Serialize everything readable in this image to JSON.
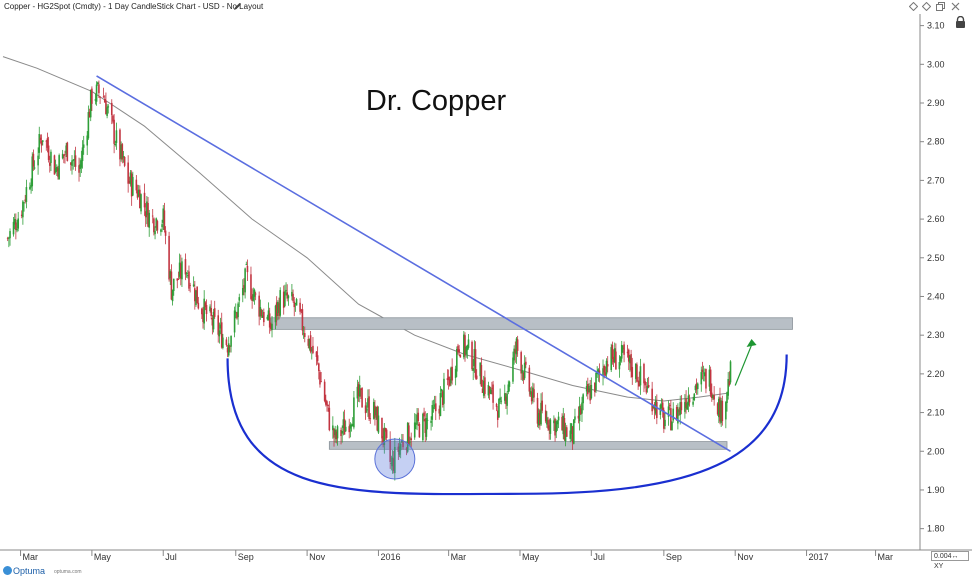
{
  "header": {
    "title": "Copper - HG2Spot (Cmdty) - 1 Day CandleStick Chart - USD - No Layout",
    "pencil_icon": "pencil-icon",
    "window_icons": [
      "diamond-icon",
      "diamond-icon",
      "restore-icon",
      "close-icon"
    ]
  },
  "annotation_title": "Dr. Copper",
  "zoom": "0.004↔ XY",
  "brand": {
    "name": "Optuma",
    "sub": "optuma.com"
  },
  "colors": {
    "up_candle": "#2e9e38",
    "down_candle": "#c23440",
    "trendline": "#5b6ee0",
    "bowl": "#1a2fd0",
    "zone": "#b8bfc6",
    "moving_average": "#8a8a8a",
    "arrow": "#1e9632"
  },
  "chart_data": {
    "type": "candlestick",
    "title": "Dr. Copper",
    "y_ticks": [
      "3.10",
      "3.00",
      "2.90",
      "2.80",
      "2.70",
      "2.60",
      "2.50",
      "2.40",
      "2.30",
      "2.20",
      "2.10",
      "2.00",
      "1.90",
      "1.80"
    ],
    "ylim": [
      1.75,
      3.13
    ],
    "x_ticks": [
      "Mar",
      "May",
      "Jul",
      "Sep",
      "Nov",
      "2016",
      "Mar",
      "May",
      "Jul",
      "Sep",
      "Nov",
      "2017",
      "Mar"
    ],
    "xlim": [
      "2015-02-14",
      "2017-04-08"
    ],
    "close_path": [
      [
        "2015-02-18",
        2.55
      ],
      [
        "2015-03-01",
        2.62
      ],
      [
        "2015-03-10",
        2.72
      ],
      [
        "2015-03-20",
        2.82
      ],
      [
        "2015-03-31",
        2.73
      ],
      [
        "2015-04-10",
        2.78
      ],
      [
        "2015-04-20",
        2.72
      ],
      [
        "2015-05-01",
        2.92
      ],
      [
        "2015-05-10",
        2.93
      ],
      [
        "2015-05-20",
        2.82
      ],
      [
        "2015-06-01",
        2.7
      ],
      [
        "2015-06-10",
        2.67
      ],
      [
        "2015-06-20",
        2.6
      ],
      [
        "2015-07-01",
        2.6
      ],
      [
        "2015-07-08",
        2.42
      ],
      [
        "2015-07-20",
        2.48
      ],
      [
        "2015-08-01",
        2.38
      ],
      [
        "2015-08-15",
        2.32
      ],
      [
        "2015-08-25",
        2.28
      ],
      [
        "2015-09-01",
        2.35
      ],
      [
        "2015-09-10",
        2.45
      ],
      [
        "2015-09-20",
        2.38
      ],
      [
        "2015-10-01",
        2.32
      ],
      [
        "2015-10-10",
        2.4
      ],
      [
        "2015-10-20",
        2.38
      ],
      [
        "2015-11-01",
        2.3
      ],
      [
        "2015-11-10",
        2.22
      ],
      [
        "2015-11-20",
        2.08
      ],
      [
        "2015-11-25",
        2.03
      ],
      [
        "2015-12-05",
        2.07
      ],
      [
        "2015-12-15",
        2.14
      ],
      [
        "2015-12-28",
        2.1
      ],
      [
        "2016-01-05",
        2.04
      ],
      [
        "2016-01-12",
        1.96
      ],
      [
        "2016-01-20",
        2.02
      ],
      [
        "2016-02-01",
        2.06
      ],
      [
        "2016-02-15",
        2.08
      ],
      [
        "2016-03-01",
        2.18
      ],
      [
        "2016-03-10",
        2.28
      ],
      [
        "2016-03-20",
        2.25
      ],
      [
        "2016-04-01",
        2.17
      ],
      [
        "2016-04-15",
        2.1
      ],
      [
        "2016-04-28",
        2.27
      ],
      [
        "2016-05-05",
        2.2
      ],
      [
        "2016-05-15",
        2.1
      ],
      [
        "2016-06-01",
        2.07
      ],
      [
        "2016-06-15",
        2.04
      ],
      [
        "2016-06-25",
        2.13
      ],
      [
        "2016-07-05",
        2.18
      ],
      [
        "2016-07-15",
        2.24
      ],
      [
        "2016-07-28",
        2.24
      ],
      [
        "2016-08-10",
        2.2
      ],
      [
        "2016-08-20",
        2.15
      ],
      [
        "2016-09-01",
        2.08
      ],
      [
        "2016-09-10",
        2.09
      ],
      [
        "2016-09-20",
        2.14
      ],
      [
        "2016-10-01",
        2.18
      ],
      [
        "2016-10-10",
        2.19
      ],
      [
        "2016-10-20",
        2.1
      ],
      [
        "2016-10-28",
        2.2
      ]
    ],
    "moving_average": [
      [
        "2015-02-14",
        3.02
      ],
      [
        "2015-03-15",
        2.99
      ],
      [
        "2015-05-01",
        2.93
      ],
      [
        "2015-06-15",
        2.84
      ],
      [
        "2015-08-01",
        2.72
      ],
      [
        "2015-09-15",
        2.6
      ],
      [
        "2015-11-01",
        2.5
      ],
      [
        "2015-12-15",
        2.38
      ],
      [
        "2016-02-01",
        2.3
      ],
      [
        "2016-03-15",
        2.25
      ],
      [
        "2016-05-01",
        2.21
      ],
      [
        "2016-06-15",
        2.17
      ],
      [
        "2016-08-01",
        2.14
      ],
      [
        "2016-09-01",
        2.13
      ],
      [
        "2016-10-01",
        2.14
      ],
      [
        "2016-10-25",
        2.15
      ]
    ],
    "trendline": {
      "from": [
        "2015-05-05",
        2.97
      ],
      "to": [
        "2016-10-28",
        2.0
      ]
    },
    "resistance_zone": {
      "from": "2015-10-01",
      "to": "2016-12-20",
      "low": 2.315,
      "high": 2.345
    },
    "support_zone": {
      "from": "2015-11-20",
      "to": "2016-10-25",
      "low": 2.005,
      "high": 2.025
    },
    "highlight_circle": {
      "center": [
        "2016-01-15",
        1.98
      ]
    },
    "bowl": {
      "left": [
        "2015-08-25",
        2.24
      ],
      "bottom": [
        "2016-05-01",
        1.89
      ],
      "right": [
        "2016-12-15",
        2.25
      ]
    },
    "projection_arrow": {
      "from": [
        "2016-11-01",
        2.17
      ],
      "to": [
        "2016-11-15",
        2.29
      ]
    }
  }
}
